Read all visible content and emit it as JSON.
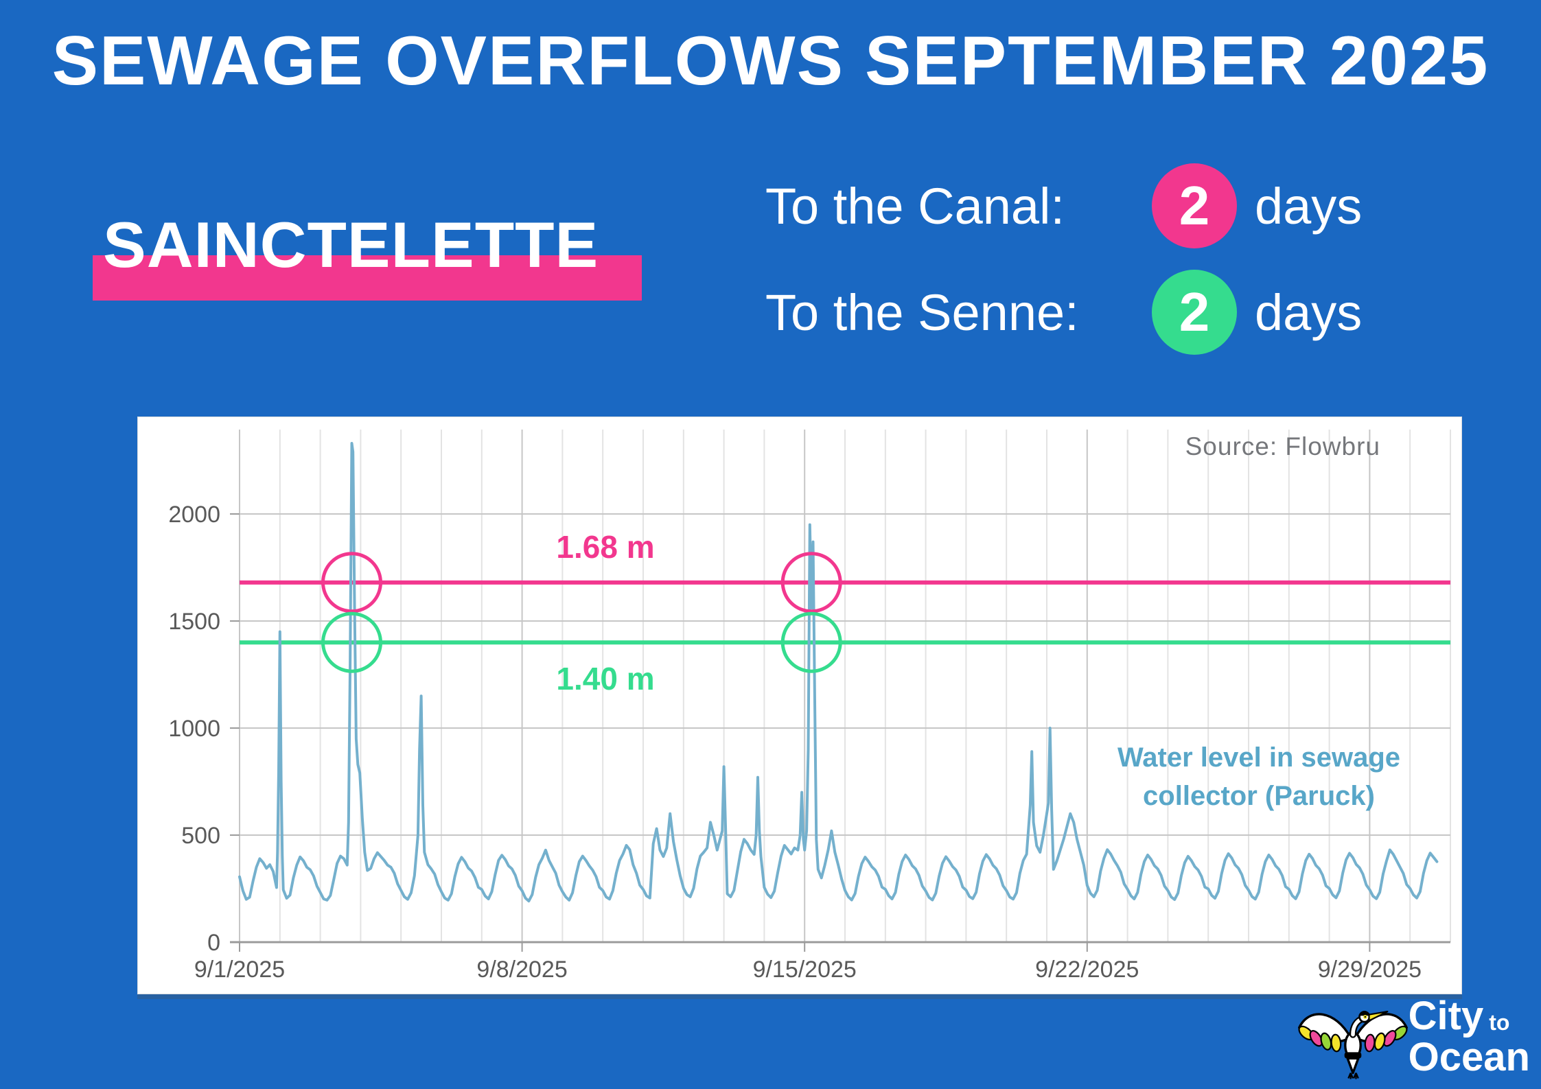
{
  "title": "SEWAGE OVERFLOWS SEPTEMBER 2025",
  "station": {
    "name": "SAINCTELETTE"
  },
  "stats": [
    {
      "label": "To the Canal:",
      "value": "2",
      "unit": "days",
      "badge_color": "#F2378E"
    },
    {
      "label": "To the Senne:",
      "value": "2",
      "unit": "days",
      "badge_color": "#35DC8E"
    }
  ],
  "colors": {
    "background": "#1A68C2",
    "pink": "#F2378E",
    "green": "#35DC8E",
    "series_line": "#74B0CD",
    "series_label": "#58A6C8",
    "axis_text": "#595959",
    "axis_line": "#9B9B9B",
    "grid_minor": "#E3E3E3",
    "grid_major": "#C6C6C6",
    "source_text": "#75777B"
  },
  "chart": {
    "source_note": "Source: Flowbru",
    "series_label_line1": "Water level in sewage",
    "series_label_line2": "collector (Paruck)",
    "chart_data": {
      "type": "line",
      "title": "Water level in sewage collector (Paruck)",
      "source": "Flowbru",
      "x_axis": {
        "unit": "date",
        "tick_labels": [
          "9/1/2025",
          "9/8/2025",
          "9/15/2025",
          "9/22/2025",
          "9/29/2025"
        ],
        "tick_days": [
          0,
          7,
          14,
          21,
          28
        ],
        "range_days": [
          0,
          30
        ]
      },
      "y_axis": {
        "ticks": [
          0,
          500,
          1000,
          1500,
          2000
        ],
        "range": [
          0,
          2395
        ]
      },
      "thresholds": [
        {
          "label": "1.68 m",
          "value": 1680,
          "color": "#F2378E",
          "meaning": "overflow to the Canal"
        },
        {
          "label": "1.40 m",
          "value": 1400,
          "color": "#35DC8E",
          "meaning": "overflow to the Senne"
        }
      ],
      "overflow_marker_days": [
        2.78,
        14.17
      ],
      "sampling_step_hours": 2,
      "start_date": "9/1/2025",
      "daily_values": [
        [
          305,
          240,
          200,
          210,
          285,
          350,
          390,
          372,
          345,
          362,
          330,
          255
        ],
        [
          null,
          245,
          205,
          220,
          300,
          360,
          398,
          380,
          350,
          338,
          310,
          262
        ],
        [
          232,
          202,
          196,
          218,
          292,
          368,
          402,
          390,
          360,
          null,
          null,
          null
        ],
        [
          null,
          null,
          335,
          345,
          390,
          418,
          400,
          382,
          360,
          350,
          322,
          272
        ],
        [
          242,
          212,
          200,
          230,
          310,
          null,
          null,
          null,
          362,
          342,
          318,
          268
        ],
        [
          236,
          206,
          196,
          226,
          306,
          366,
          396,
          376,
          346,
          332,
          302,
          256
        ],
        [
          246,
          216,
          202,
          236,
          316,
          382,
          406,
          386,
          356,
          342,
          312,
          262
        ],
        [
          240,
          206,
          192,
          222,
          302,
          362,
          392,
          430,
          382,
          352,
          322,
          266
        ],
        [
          236,
          211,
          196,
          231,
          312,
          376,
          402,
          381,
          356,
          336,
          306,
          256
        ],
        [
          241,
          211,
          201,
          241,
          322,
          382,
          412,
          452,
          432,
          362,
          322,
          266
        ],
        [
          246,
          216,
          206,
          460,
          530,
          430,
          400,
          440,
          600,
          470,
          385,
          310
        ],
        [
          252,
          222,
          212,
          252,
          342,
          402,
          420,
          440,
          560,
          500,
          430,
          null
        ],
        [
          null,
          226,
          212,
          242,
          332,
          422,
          480,
          460,
          430,
          410,
          null,
          400
        ],
        [
          256,
          224,
          208,
          238,
          324,
          402,
          452,
          432,
          412,
          440,
          430,
          null
        ],
        [
          430,
          null,
          null,
          null,
          340,
          300,
          360,
          430,
          520,
          420,
          360,
          295
        ],
        [
          242,
          212,
          197,
          227,
          307,
          367,
          397,
          377,
          352,
          337,
          307,
          257
        ],
        [
          247,
          217,
          202,
          232,
          317,
          377,
          407,
          387,
          357,
          342,
          312,
          262
        ],
        [
          239,
          209,
          197,
          229,
          309,
          369,
          399,
          379,
          353,
          337,
          307,
          257
        ],
        [
          243,
          213,
          203,
          233,
          319,
          379,
          409,
          389,
          359,
          343,
          313,
          263
        ],
        [
          241,
          211,
          201,
          231,
          321,
          381,
          411,
          null,
          null,
          450,
          420,
          500
        ],
        [
          null,
          null,
          340,
          380,
          430,
          480,
          540,
          600,
          560,
          480,
          420,
          360
        ],
        [
          265,
          228,
          212,
          242,
          332,
          392,
          432,
          412,
          382,
          357,
          327,
          272
        ],
        [
          247,
          217,
          202,
          232,
          317,
          377,
          407,
          387,
          357,
          342,
          312,
          262
        ],
        [
          241,
          211,
          199,
          229,
          311,
          371,
          401,
          381,
          353,
          337,
          307,
          257
        ],
        [
          249,
          219,
          205,
          237,
          321,
          383,
          413,
          393,
          361,
          345,
          315,
          265
        ],
        [
          243,
          213,
          201,
          233,
          317,
          377,
          407,
          387,
          357,
          341,
          311,
          259
        ],
        [
          247,
          217,
          203,
          235,
          319,
          381,
          411,
          391,
          359,
          343,
          313,
          263
        ],
        [
          251,
          221,
          207,
          239,
          323,
          385,
          415,
          395,
          363,
          347,
          317,
          267
        ],
        [
          245,
          215,
          203,
          233,
          319,
          379,
          431,
          411,
          381,
          351,
          321,
          269
        ],
        [
          251,
          221,
          206,
          236,
          321,
          381,
          416,
          396,
          376
        ]
      ],
      "extra_points": [
        [
          0.94,
          420
        ],
        [
          0.97,
          800
        ],
        [
          1.0,
          1450
        ],
        [
          1.03,
          750
        ],
        [
          1.06,
          400
        ],
        [
          2.7,
          560
        ],
        [
          2.74,
          1300
        ],
        [
          2.78,
          2330
        ],
        [
          2.81,
          2290
        ],
        [
          2.85,
          1550
        ],
        [
          2.89,
          950
        ],
        [
          2.93,
          830
        ],
        [
          2.98,
          790
        ],
        [
          3.04,
          580
        ],
        [
          3.1,
          420
        ],
        [
          4.42,
          500
        ],
        [
          4.46,
          900
        ],
        [
          4.5,
          1150
        ],
        [
          4.54,
          640
        ],
        [
          4.58,
          420
        ],
        [
          11.96,
          520
        ],
        [
          12.0,
          820
        ],
        [
          12.04,
          540
        ],
        [
          12.8,
          500
        ],
        [
          12.84,
          770
        ],
        [
          12.88,
          520
        ],
        [
          13.89,
          500
        ],
        [
          13.93,
          700
        ],
        [
          13.97,
          480
        ],
        [
          14.05,
          520
        ],
        [
          14.09,
          900
        ],
        [
          14.13,
          1950
        ],
        [
          14.17,
          1560
        ],
        [
          14.21,
          1870
        ],
        [
          14.25,
          1150
        ],
        [
          14.29,
          480
        ],
        [
          19.59,
          640
        ],
        [
          19.63,
          890
        ],
        [
          19.67,
          560
        ],
        [
          20.04,
          650
        ],
        [
          20.08,
          1000
        ],
        [
          20.12,
          620
        ]
      ]
    }
  },
  "logo": {
    "city": "City",
    "to": "to",
    "ocean": "Ocean"
  }
}
